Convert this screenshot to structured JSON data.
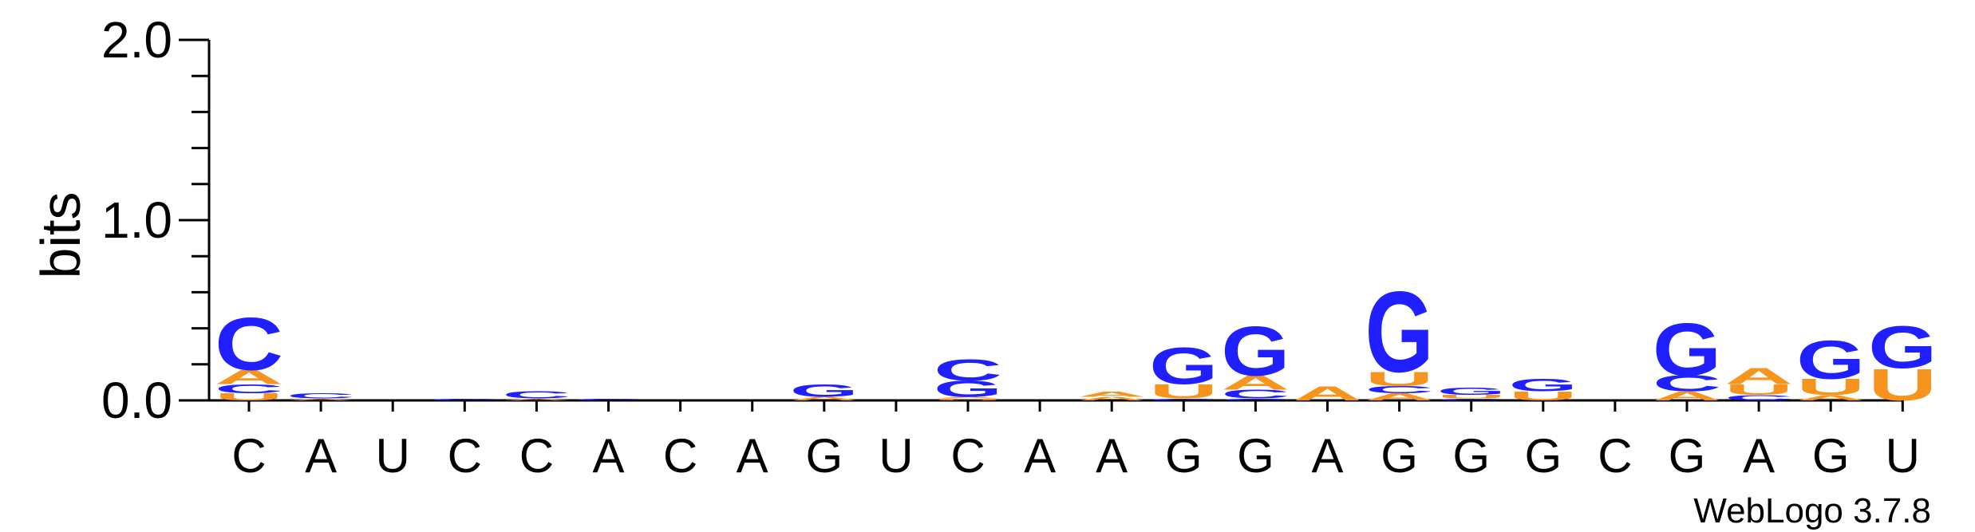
{
  "chart_data": {
    "type": "sequence-logo",
    "ylabel": "bits",
    "ylim": [
      0,
      2.0
    ],
    "yticks": [
      "0.0",
      "1.0",
      "2.0"
    ],
    "positions": [
      "C",
      "A",
      "U",
      "C",
      "C",
      "A",
      "C",
      "A",
      "G",
      "U",
      "C",
      "A",
      "A",
      "G",
      "G",
      "A",
      "G",
      "G",
      "G",
      "C",
      "G",
      "A",
      "G",
      "U"
    ],
    "colors": {
      "A": "#F7941D",
      "U": "#F7941D",
      "C": "#1F1FFF",
      "G": "#1F1FFF"
    },
    "stacks": [
      [
        [
          "U",
          0.04
        ],
        [
          "C",
          0.05
        ],
        [
          "A",
          0.08
        ],
        [
          "C",
          0.3
        ]
      ],
      [
        [
          "A",
          0.01
        ],
        [
          "C",
          0.03
        ]
      ],
      [],
      [
        [
          "C",
          0.01
        ]
      ],
      [
        [
          "A",
          0.01
        ],
        [
          "C",
          0.04
        ]
      ],
      [
        [
          "C",
          0.01
        ]
      ],
      [],
      [],
      [
        [
          "A",
          0.02
        ],
        [
          "G",
          0.07
        ]
      ],
      [],
      [
        [
          "U",
          0.01
        ],
        [
          "A",
          0.01
        ],
        [
          "G",
          0.09
        ],
        [
          "C",
          0.12
        ]
      ],
      [],
      [
        [
          "A",
          0.02
        ],
        [
          "A",
          0.03
        ]
      ],
      [
        [
          "C",
          0.01
        ],
        [
          "U",
          0.08
        ],
        [
          "G",
          0.21
        ]
      ],
      [
        [
          "C",
          0.01
        ],
        [
          "C",
          0.05
        ],
        [
          "A",
          0.08
        ],
        [
          "G",
          0.28
        ]
      ],
      [
        [
          "A",
          0.08
        ]
      ],
      [
        [
          "A",
          0.04
        ],
        [
          "C",
          0.04
        ],
        [
          "U",
          0.08
        ],
        [
          "G",
          0.46
        ]
      ],
      [
        [
          "C",
          0.01
        ],
        [
          "U",
          0.02
        ],
        [
          "G",
          0.04
        ]
      ],
      [
        [
          "U",
          0.05
        ],
        [
          "G",
          0.07
        ]
      ],
      [],
      [
        [
          "A",
          0.05
        ],
        [
          "C",
          0.09
        ],
        [
          "G",
          0.3
        ]
      ],
      [
        [
          "C",
          0.03
        ],
        [
          "U",
          0.06
        ],
        [
          "A",
          0.09
        ]
      ],
      [
        [
          "A",
          0.03
        ],
        [
          "U",
          0.09
        ],
        [
          "G",
          0.22
        ]
      ],
      [
        [
          "U",
          0.18
        ],
        [
          "G",
          0.24
        ]
      ]
    ]
  },
  "footer": {
    "version_label": "WebLogo 3.7.8"
  }
}
